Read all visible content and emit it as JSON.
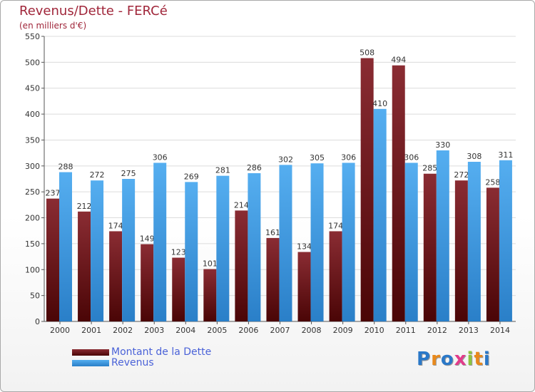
{
  "colors": {
    "dette": "#7b1f24",
    "revenus": "#4aa3e8",
    "title": "#a0263a",
    "legend_text": "#4a62d8"
  },
  "chart_data": {
    "type": "bar",
    "title": "Revenus/Dette - FERCé",
    "subtitle": "(en milliers d'€)",
    "xlabel": "",
    "ylabel": "",
    "ylim": [
      0,
      550
    ],
    "yticks": [
      0,
      50,
      100,
      150,
      200,
      250,
      300,
      350,
      400,
      450,
      500,
      550
    ],
    "grid": true,
    "legend_position": "bottom-left",
    "categories": [
      "2000",
      "2001",
      "2002",
      "2003",
      "2004",
      "2005",
      "2006",
      "2007",
      "2008",
      "2009",
      "2010",
      "2011",
      "2012",
      "2013",
      "2014"
    ],
    "series": [
      {
        "name": "Montant de la Dette",
        "values": [
          237,
          212,
          174,
          149,
          123,
          101,
          214,
          161,
          134,
          174,
          508,
          494,
          285,
          272,
          258
        ]
      },
      {
        "name": "Revenus",
        "values": [
          288,
          272,
          275,
          306,
          269,
          281,
          286,
          302,
          305,
          306,
          410,
          306,
          330,
          308,
          311
        ]
      }
    ]
  },
  "logo": {
    "text": "Proxiti"
  }
}
